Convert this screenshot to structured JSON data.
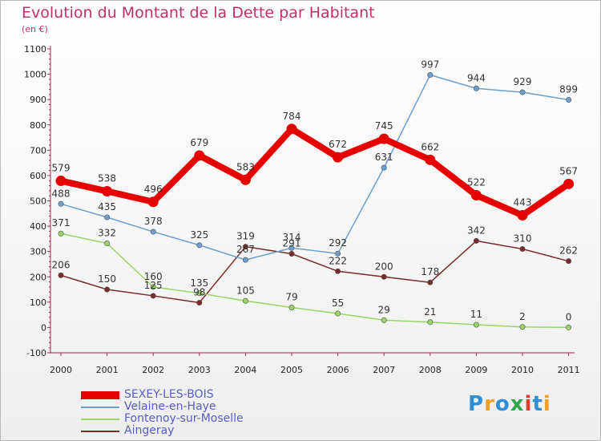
{
  "header": {
    "title": "Evolution du Montant de la Dette par Habitant",
    "subtitle": "(en €)"
  },
  "logo": {
    "text": "Proxiti",
    "colors": [
      "#2f8fd6",
      "#f0a020",
      "#2f8fd6",
      "#2ea84a",
      "#e23a2e",
      "#2f8fd6",
      "#f0a020"
    ]
  },
  "chart_data": {
    "type": "line",
    "title": "Evolution du Montant de la Dette par Habitant",
    "subtitle": "(en €)",
    "xlabel": "",
    "ylabel": "",
    "categories": [
      "2000",
      "2001",
      "2002",
      "2003",
      "2004",
      "2005",
      "2006",
      "2007",
      "2008",
      "2009",
      "2010",
      "2011"
    ],
    "ylim": [
      -100,
      1100
    ],
    "yticks": [
      -100,
      0,
      100,
      200,
      300,
      400,
      500,
      600,
      700,
      800,
      900,
      1000,
      1100
    ],
    "grid": false,
    "legend_position": "bottom-left",
    "series": [
      {
        "name": "SEXEY-LES-BOIS",
        "color": "#e60000",
        "width": 8,
        "values": [
          579,
          538,
          496,
          679,
          583,
          784,
          672,
          745,
          662,
          522,
          443,
          567
        ]
      },
      {
        "name": "Velaine-en-Haye",
        "color": "#6a9fd0",
        "width": 1.5,
        "values": [
          488,
          435,
          378,
          325,
          267,
          314,
          292,
          631,
          997,
          944,
          929,
          899
        ]
      },
      {
        "name": "Fontenoy-sur-Moselle",
        "color": "#99d466",
        "width": 1.5,
        "values": [
          371,
          332,
          160,
          135,
          105,
          79,
          55,
          29,
          21,
          11,
          2,
          0
        ]
      },
      {
        "name": "Aingeray",
        "color": "#7a2a2a",
        "width": 1.5,
        "values": [
          206,
          150,
          125,
          98,
          319,
          291,
          222,
          200,
          178,
          342,
          310,
          262
        ]
      }
    ]
  }
}
